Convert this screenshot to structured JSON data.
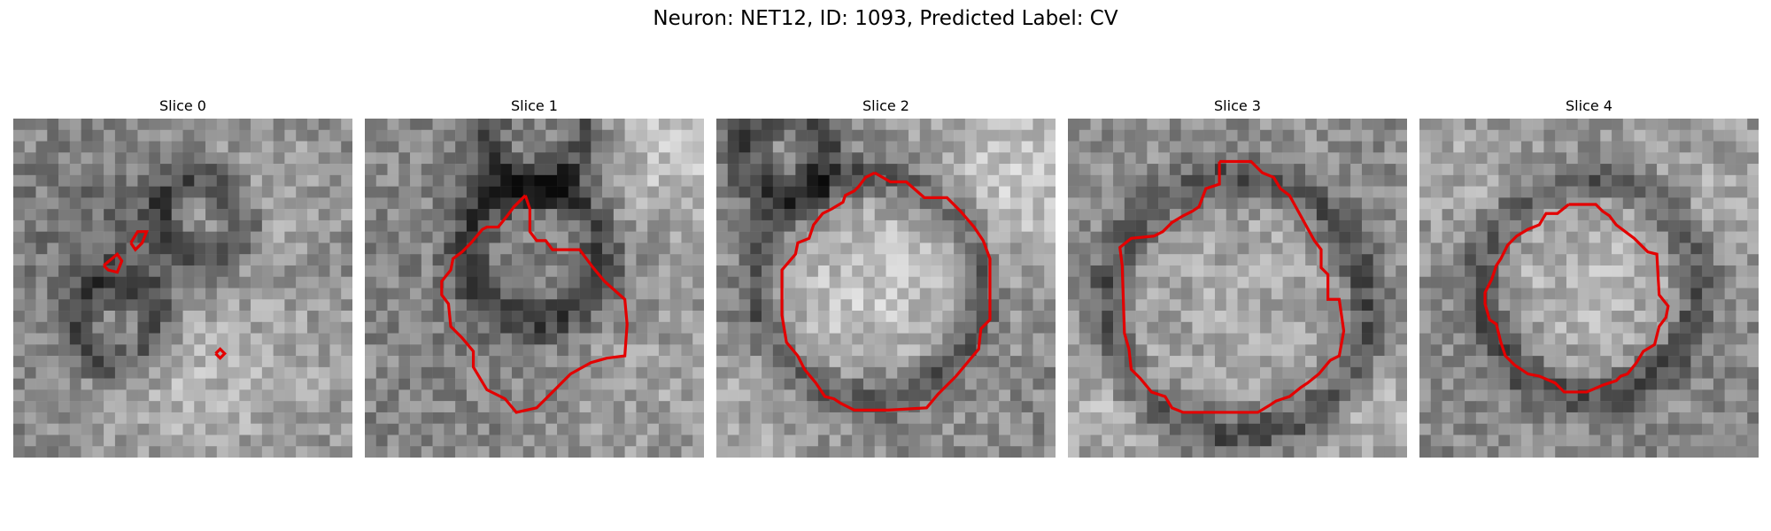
{
  "figure": {
    "title": "Neuron: NET12, ID: 1093, Predicted Label: CV"
  },
  "panels": [
    {
      "title": "Slice 0",
      "seed": 11,
      "blobs": [
        [
          0.75,
          0.22,
          0.18,
          28
        ],
        [
          0.5,
          0.8,
          0.2,
          40
        ],
        [
          0.25,
          0.35,
          0.15,
          -30
        ],
        [
          0.85,
          0.75,
          0.18,
          25
        ]
      ],
      "dark": [
        [
          0.55,
          0.3,
          0.12
        ],
        [
          0.3,
          0.6,
          0.12
        ]
      ]
    },
    {
      "title": "Slice 1",
      "seed": 22,
      "blobs": [
        [
          0.5,
          0.5,
          0.25,
          -10
        ],
        [
          0.9,
          0.1,
          0.18,
          60
        ],
        [
          0.85,
          0.8,
          0.2,
          30
        ]
      ],
      "dark": [
        [
          0.5,
          0.4,
          0.2
        ],
        [
          0.5,
          0.05,
          0.15
        ]
      ]
    },
    {
      "title": "Slice 2",
      "seed": 33,
      "blobs": [
        [
          0.45,
          0.5,
          0.22,
          60
        ],
        [
          0.9,
          0.15,
          0.2,
          60
        ],
        [
          0.1,
          0.85,
          0.15,
          30
        ]
      ],
      "dark": [
        [
          0.45,
          0.5,
          0.33
        ],
        [
          0.2,
          0.1,
          0.12
        ]
      ]
    },
    {
      "title": "Slice 3",
      "seed": 44,
      "blobs": [
        [
          0.5,
          0.5,
          0.28,
          35
        ],
        [
          0.1,
          0.85,
          0.15,
          40
        ],
        [
          0.95,
          0.9,
          0.15,
          40
        ]
      ],
      "dark": [
        [
          0.5,
          0.55,
          0.38
        ]
      ]
    },
    {
      "title": "Slice 4",
      "seed": 55,
      "blobs": [
        [
          0.5,
          0.5,
          0.2,
          45
        ],
        [
          0.15,
          0.15,
          0.2,
          30
        ],
        [
          0.85,
          0.2,
          0.2,
          30
        ]
      ],
      "dark": [
        [
          0.5,
          0.5,
          0.32
        ]
      ]
    }
  ]
}
